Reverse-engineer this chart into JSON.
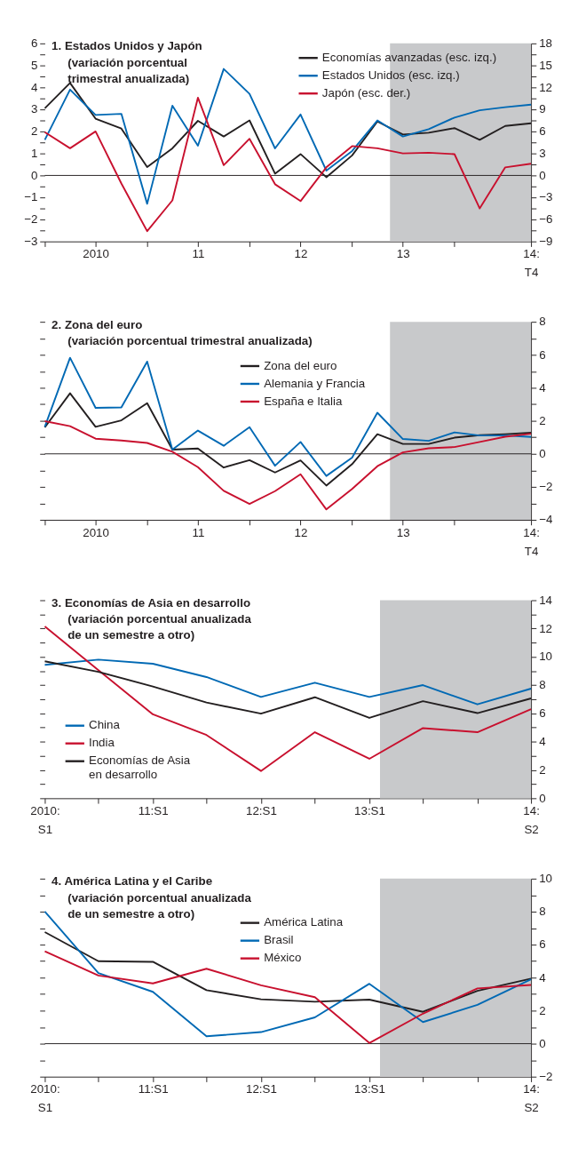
{
  "chart_data": [
    {
      "type": "line",
      "title": "1. Estados Unidos y Japón",
      "subtitle": "(variación porcentual\ntrimestral anualizada)",
      "x": [
        "2010-01",
        "2010-04",
        "2010-07",
        "2010-10",
        "2011-01",
        "2011-04",
        "2011-07",
        "2011-10",
        "2012-01",
        "2012-04",
        "2012-07",
        "2012-10",
        "2013-01",
        "2013-04",
        "2013-07",
        "2013-10",
        "2014-01",
        "2014-04",
        "2014-07",
        "2014-10"
      ],
      "xlim": [
        "2010-01",
        "2014-10"
      ],
      "xticks": [
        {
          "value": "2010-01",
          "label": null
        },
        {
          "value": "2010-07",
          "label": "2010"
        },
        {
          "value": "2011-01",
          "label": null
        },
        {
          "value": "2011-07",
          "label": "11"
        },
        {
          "value": "2012-01",
          "label": null
        },
        {
          "value": "2012-07",
          "label": "12"
        },
        {
          "value": "2013-01",
          "label": null
        },
        {
          "value": "2013-07",
          "label": "13"
        },
        {
          "value": "2014-01",
          "label": null
        },
        {
          "value": "2014-10",
          "label": "14:\nT4"
        }
      ],
      "ylim": [
        -3,
        6
      ],
      "yticks": [
        -3,
        {
          "value": -2.5,
          "label": null
        },
        -2,
        {
          "value": -1.5,
          "label": null
        },
        -1,
        {
          "value": -0.5,
          "label": null
        },
        0,
        {
          "value": 0.5,
          "label": null
        },
        1,
        {
          "value": 1.5,
          "label": null
        },
        2,
        {
          "value": 2.5,
          "label": null
        },
        3,
        {
          "value": 3.5,
          "label": null
        },
        4,
        {
          "value": 4.5,
          "label": null
        },
        5,
        {
          "value": 5.5,
          "label": null
        },
        6
      ],
      "y2lim": [
        -9,
        18
      ],
      "y2ticks": [
        -9,
        {
          "value": -7.5,
          "label": null
        },
        -6,
        {
          "value": -4.5,
          "label": null
        },
        -3,
        {
          "value": -1.5,
          "label": null
        },
        0,
        {
          "value": 1.5,
          "label": null
        },
        3,
        {
          "value": 4.5,
          "label": null
        },
        6,
        {
          "value": 7.5,
          "label": null
        },
        9,
        {
          "value": 10.5,
          "label": null
        },
        12,
        {
          "value": 13.5,
          "label": null
        },
        15,
        {
          "value": 16.5,
          "label": null
        },
        18
      ],
      "series": [
        {
          "name": "Economías avanzadas (esc. izq.)",
          "color": "#231f20",
          "axis": "y",
          "values": [
            3.05,
            4.2,
            2.58,
            2.13,
            0.38,
            1.23,
            2.48,
            1.77,
            2.5,
            0.08,
            0.97,
            -0.08,
            0.91,
            2.45,
            1.86,
            1.94,
            2.15,
            1.62,
            2.25,
            2.37
          ]
        },
        {
          "name": "Estados Unidos (esc. izq.)",
          "color": "#0069b4",
          "axis": "y",
          "values": [
            1.62,
            3.9,
            2.75,
            2.8,
            -1.29,
            3.17,
            1.35,
            4.84,
            3.71,
            1.23,
            2.77,
            0.22,
            1.11,
            2.5,
            1.77,
            2.1,
            2.63,
            2.96,
            3.1,
            3.22
          ]
        },
        {
          "name": "Japón (esc. der.)",
          "color": "#c8102e",
          "axis": "y2",
          "values": [
            5.9,
            3.7,
            6.0,
            -1.1,
            -7.6,
            -3.4,
            10.6,
            1.4,
            5.0,
            -1.2,
            -3.5,
            1.1,
            4.0,
            3.7,
            3.0,
            3.1,
            2.9,
            -4.5,
            1.1,
            1.6
          ]
        }
      ],
      "bands": [
        {
          "axis": "x",
          "from": "2013-05-16",
          "to": "2014-10",
          "color": "#c8c9cb"
        }
      ],
      "ref_lines": [
        {
          "axis": "y",
          "value": 0,
          "color": "#231f20"
        }
      ],
      "legend": "top right",
      "grid": false,
      "marker": "none",
      "line_style": "solid"
    },
    {
      "type": "line",
      "title": "2. Zona del euro",
      "subtitle": "(variación porcentual trimestral anualizada)",
      "x": [
        "2010-01",
        "2010-04",
        "2010-07",
        "2010-10",
        "2011-01",
        "2011-04",
        "2011-07",
        "2011-10",
        "2012-01",
        "2012-04",
        "2012-07",
        "2012-10",
        "2013-01",
        "2013-04",
        "2013-07",
        "2013-10",
        "2014-01",
        "2014-04",
        "2014-07",
        "2014-10"
      ],
      "xlim": [
        "2010-01",
        "2014-10"
      ],
      "xticks": [
        {
          "value": "2010-01",
          "label": null
        },
        {
          "value": "2010-07",
          "label": "2010"
        },
        {
          "value": "2011-01",
          "label": null
        },
        {
          "value": "2011-07",
          "label": "11"
        },
        {
          "value": "2012-01",
          "label": null
        },
        {
          "value": "2012-07",
          "label": "12"
        },
        {
          "value": "2013-01",
          "label": null
        },
        {
          "value": "2013-07",
          "label": "13"
        },
        {
          "value": "2014-01",
          "label": null
        },
        {
          "value": "2014-10",
          "label": "14:\nT4"
        }
      ],
      "y2lim": [
        -4,
        8
      ],
      "y2ticks": [
        -4,
        {
          "value": -3,
          "label": null
        },
        -2,
        {
          "value": -1,
          "label": null
        },
        0,
        {
          "value": 1,
          "label": null
        },
        2,
        {
          "value": 3,
          "label": null
        },
        4,
        {
          "value": 5,
          "label": null
        },
        6,
        {
          "value": 7,
          "label": null
        },
        8
      ],
      "series": [
        {
          "name": "Zona del euro",
          "color": "#231f20",
          "axis": "y2",
          "values": [
            1.6,
            3.67,
            1.64,
            2.03,
            3.07,
            0.26,
            0.32,
            -0.83,
            -0.38,
            -1.13,
            -0.4,
            -1.92,
            -0.62,
            1.19,
            0.6,
            0.6,
            0.98,
            1.13,
            1.19,
            1.28
          ]
        },
        {
          "name": "Alemania y Francia",
          "color": "#0069b4",
          "axis": "y2",
          "values": [
            1.64,
            5.82,
            2.79,
            2.81,
            5.59,
            0.26,
            1.41,
            0.49,
            1.62,
            -0.72,
            0.72,
            -1.34,
            -0.23,
            2.49,
            0.9,
            0.79,
            1.3,
            1.11,
            1.11,
            1.02
          ]
        },
        {
          "name": "España e Italia",
          "color": "#c8102e",
          "axis": "y2",
          "values": [
            1.98,
            1.68,
            0.92,
            0.81,
            0.66,
            0.13,
            -0.81,
            -2.24,
            -3.03,
            -2.26,
            -1.24,
            -3.37,
            -2.13,
            -0.75,
            0.09,
            0.34,
            0.41,
            0.72,
            1.04,
            1.22
          ]
        }
      ],
      "bands": [
        {
          "axis": "x",
          "from": "2013-05-16",
          "to": "2014-10",
          "color": "#c8c9cb"
        }
      ],
      "ref_lines": [
        {
          "axis": "y2",
          "value": 0,
          "color": "#231f20"
        }
      ],
      "legend": "top",
      "grid": false,
      "marker": "none",
      "line_style": "solid"
    },
    {
      "type": "line",
      "title": "3. Economías de Asia en desarrollo",
      "subtitle": "(variación porcentual anualizada\nde un semestre a otro)",
      "x": [
        "2010-01",
        "2010-07",
        "2011-01",
        "2011-07",
        "2012-01",
        "2012-07",
        "2013-01",
        "2013-07",
        "2014-01",
        "2014-07"
      ],
      "xlim": [
        "2010-01",
        "2014-07"
      ],
      "xticks": [
        {
          "value": "2010-01",
          "label": "2010:\nS1"
        },
        {
          "value": "2010-07",
          "label": null
        },
        {
          "value": "2011-01",
          "label": "11:S1"
        },
        {
          "value": "2011-07",
          "label": null
        },
        {
          "value": "2012-01",
          "label": "12:S1"
        },
        {
          "value": "2012-07",
          "label": null
        },
        {
          "value": "2013-01",
          "label": "13:S1"
        },
        {
          "value": "2013-07",
          "label": null
        },
        {
          "value": "2014-01",
          "label": null
        },
        {
          "value": "2014-07",
          "label": "14:\nS2"
        }
      ],
      "y2lim": [
        0,
        14
      ],
      "y2ticks": [
        0,
        {
          "value": 1,
          "label": null
        },
        2,
        {
          "value": 3,
          "label": null
        },
        4,
        {
          "value": 5,
          "label": null
        },
        6,
        {
          "value": 7,
          "label": null
        },
        8,
        {
          "value": 9,
          "label": null
        },
        10,
        {
          "value": 11,
          "label": null
        },
        12,
        {
          "value": 13,
          "label": null
        },
        14
      ],
      "series": [
        {
          "name": "China",
          "color": "#0069b4",
          "axis": "y2",
          "values": [
            9.43,
            9.8,
            9.51,
            8.57,
            7.16,
            8.17,
            7.16,
            8.0,
            6.64,
            7.75
          ]
        },
        {
          "name": "India",
          "color": "#c8102e",
          "axis": "y2",
          "values": [
            12.15,
            9.06,
            5.93,
            4.47,
            1.93,
            4.67,
            2.79,
            4.96,
            4.67,
            6.3
          ]
        },
        {
          "name": "Economías de Asia\nen desarrollo",
          "color": "#231f20",
          "axis": "y2",
          "values": [
            9.68,
            8.94,
            7.9,
            6.77,
            5.98,
            7.14,
            5.68,
            6.86,
            6.02,
            7.06
          ]
        }
      ],
      "bands": [
        {
          "axis": "x",
          "from": "2013-02-06",
          "to": "2014-07",
          "color": "#c8c9cb"
        }
      ],
      "legend": "left",
      "grid": false,
      "marker": "none",
      "line_style": "solid"
    },
    {
      "type": "line",
      "title": "4. América Latina y el Caribe",
      "subtitle": "(variación porcentual anualizada\nde un semestre a otro)",
      "x": [
        "2010-01",
        "2010-07",
        "2011-01",
        "2011-07",
        "2012-01",
        "2012-07",
        "2013-01",
        "2013-07",
        "2014-01",
        "2014-07"
      ],
      "xlim": [
        "2010-01",
        "2014-07"
      ],
      "xticks": [
        {
          "value": "2010-01",
          "label": "2010:\nS1"
        },
        {
          "value": "2010-07",
          "label": null
        },
        {
          "value": "2011-01",
          "label": "11:S1"
        },
        {
          "value": "2011-07",
          "label": null
        },
        {
          "value": "2012-01",
          "label": "12:S1"
        },
        {
          "value": "2012-07",
          "label": null
        },
        {
          "value": "2013-01",
          "label": "13:S1"
        },
        {
          "value": "2013-07",
          "label": null
        },
        {
          "value": "2014-01",
          "label": null
        },
        {
          "value": "2014-07",
          "label": "14:\nS2"
        }
      ],
      "y2lim": [
        -2,
        10
      ],
      "y2ticks": [
        -2,
        {
          "value": -1,
          "label": null
        },
        0,
        {
          "value": 1,
          "label": null
        },
        2,
        {
          "value": 3,
          "label": null
        },
        4,
        {
          "value": 5,
          "label": null
        },
        6,
        {
          "value": 7,
          "label": null
        },
        8,
        {
          "value": 9,
          "label": null
        },
        10
      ],
      "series": [
        {
          "name": "América Latina",
          "color": "#231f20",
          "axis": "y2",
          "values": [
            6.76,
            5.0,
            4.96,
            3.24,
            2.69,
            2.54,
            2.67,
            1.93,
            3.2,
            3.94
          ]
        },
        {
          "name": "Brasil",
          "color": "#0069b4",
          "axis": "y2",
          "values": [
            8.01,
            4.28,
            3.14,
            0.45,
            0.7,
            1.59,
            3.63,
            1.31,
            2.35,
            3.9
          ]
        },
        {
          "name": "México",
          "color": "#c8102e",
          "axis": "y2",
          "values": [
            5.6,
            4.13,
            3.65,
            4.54,
            3.54,
            2.82,
            0.04,
            1.82,
            3.35,
            3.56
          ]
        }
      ],
      "bands": [
        {
          "axis": "x",
          "from": "2013-02-06",
          "to": "2014-07",
          "color": "#c8c9cb"
        }
      ],
      "ref_lines": [
        {
          "axis": "y2",
          "value": 0,
          "color": "#231f20"
        }
      ],
      "legend": "top",
      "grid": false,
      "marker": "none",
      "line_style": "solid"
    }
  ]
}
